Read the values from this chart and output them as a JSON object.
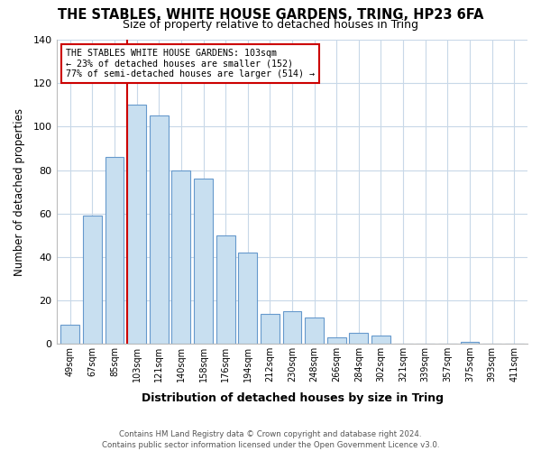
{
  "title": "THE STABLES, WHITE HOUSE GARDENS, TRING, HP23 6FA",
  "subtitle": "Size of property relative to detached houses in Tring",
  "xlabel": "Distribution of detached houses by size in Tring",
  "ylabel": "Number of detached properties",
  "bar_labels": [
    "49sqm",
    "67sqm",
    "85sqm",
    "103sqm",
    "121sqm",
    "140sqm",
    "158sqm",
    "176sqm",
    "194sqm",
    "212sqm",
    "230sqm",
    "248sqm",
    "266sqm",
    "284sqm",
    "302sqm",
    "321sqm",
    "339sqm",
    "357sqm",
    "375sqm",
    "393sqm",
    "411sqm"
  ],
  "bar_values": [
    9,
    59,
    86,
    110,
    105,
    80,
    76,
    50,
    42,
    14,
    15,
    12,
    3,
    5,
    4,
    0,
    0,
    0,
    1,
    0,
    0
  ],
  "bar_color": "#c8dff0",
  "bar_edge_color": "#6699cc",
  "highlight_index": 3,
  "highlight_line_color": "#cc0000",
  "ylim": [
    0,
    140
  ],
  "yticks": [
    0,
    20,
    40,
    60,
    80,
    100,
    120,
    140
  ],
  "annotation_title": "THE STABLES WHITE HOUSE GARDENS: 103sqm",
  "annotation_line1": "← 23% of detached houses are smaller (152)",
  "annotation_line2": "77% of semi-detached houses are larger (514) →",
  "annotation_box_color": "#ffffff",
  "annotation_box_edge": "#cc0000",
  "footer_line1": "Contains HM Land Registry data © Crown copyright and database right 2024.",
  "footer_line2": "Contains public sector information licensed under the Open Government Licence v3.0.",
  "background_color": "#ffffff",
  "grid_color": "#c8d8e8"
}
